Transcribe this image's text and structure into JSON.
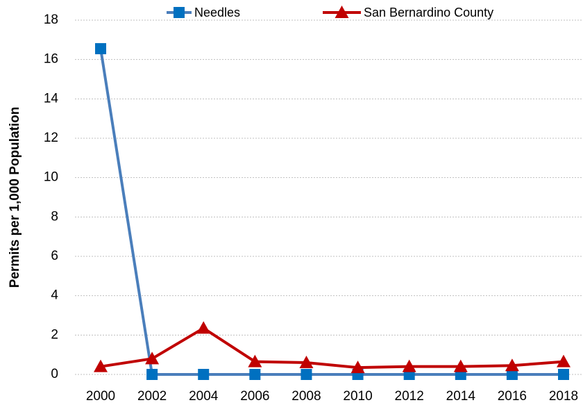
{
  "chart_data": {
    "type": "line",
    "y_label": "Permits per 1,000 Population",
    "categories": [
      "2000",
      "2002",
      "2004",
      "2006",
      "2008",
      "2010",
      "2012",
      "2014",
      "2016",
      "2018"
    ],
    "series": [
      {
        "name": "Needles",
        "color": "#4a7ebb",
        "marker_color": "#0070c0",
        "marker": "square",
        "values": [
          16.55,
          0,
          0,
          0,
          0,
          0,
          0,
          0,
          0,
          0
        ]
      },
      {
        "name": "San Bernardino County",
        "color": "#c00000",
        "marker_color": "#c00000",
        "marker": "triangle",
        "values": [
          0.4,
          0.8,
          2.35,
          0.65,
          0.6,
          0.35,
          0.4,
          0.4,
          0.45,
          0.65
        ]
      }
    ],
    "ylim": [
      0,
      18
    ],
    "yticks": [
      0,
      2,
      4,
      6,
      8,
      10,
      12,
      14,
      16,
      18
    ],
    "grid": true,
    "legend": "top"
  }
}
